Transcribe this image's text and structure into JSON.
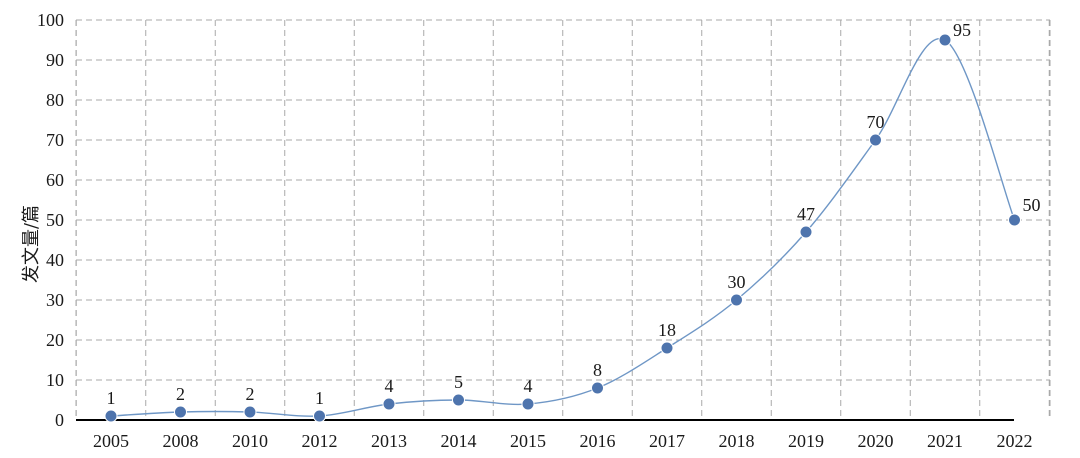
{
  "chart_data": {
    "type": "line",
    "title": "",
    "xlabel": "",
    "ylabel": "发文量/篇",
    "categories": [
      "2005",
      "2008",
      "2010",
      "2012",
      "2013",
      "2014",
      "2015",
      "2016",
      "2017",
      "2018",
      "2019",
      "2020",
      "2021",
      "2022"
    ],
    "values": [
      1,
      2,
      2,
      1,
      4,
      5,
      4,
      8,
      18,
      30,
      47,
      70,
      95,
      50
    ],
    "ylim": [
      0,
      100
    ],
    "yticks": [
      0,
      10,
      20,
      30,
      40,
      50,
      60,
      70,
      80,
      90,
      100
    ],
    "grid": true,
    "smooth": true,
    "data_labels": true,
    "colors": {
      "line": "#6f97c6",
      "marker": "#4e74ad",
      "grid": "#a9a9a9",
      "axis": "#000000"
    }
  }
}
